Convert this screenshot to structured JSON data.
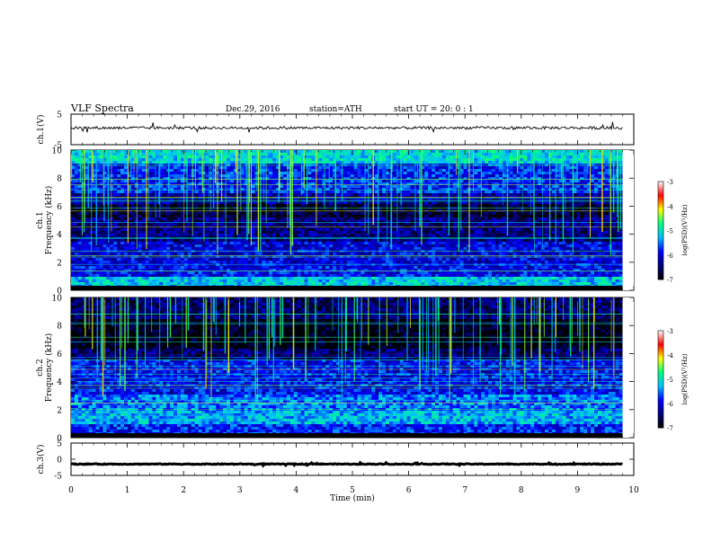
{
  "header": {
    "title": "VLF  Spectra",
    "date": "Dec.29, 2016",
    "station": "station=ATH",
    "start": "start  UT  =    20: 0   : 1"
  },
  "colors": {
    "background": "#ffffff",
    "axis": "#000000",
    "colormap": [
      "#000000",
      "#00007a",
      "#0000ff",
      "#00c0ff",
      "#00ff80",
      "#ffff00",
      "#ff0000",
      "#ffffff"
    ]
  },
  "chart_data": [
    {
      "type": "line",
      "panel": "ch1-waveform",
      "ylabel": "ch.1(V)",
      "ylim": [
        -5,
        5
      ],
      "yticks": [
        "5",
        "-5"
      ],
      "xlim": [
        0,
        10
      ],
      "trace_level": 0.5
    },
    {
      "type": "heatmap",
      "panel": "ch1-spectrogram",
      "ylabel_channel": "ch.1",
      "ylabel": "Frequency  (kHz)",
      "ylim": [
        0,
        10
      ],
      "yticks": [
        "0",
        "2",
        "4",
        "6",
        "8",
        "10"
      ],
      "xlim": [
        0,
        10
      ],
      "data_end_min": 9.8,
      "colorbar": {
        "label": "log(PSD)(V²/Hz)",
        "range": [
          -7,
          -3
        ],
        "ticks": [
          "-3",
          "-4",
          "-5",
          "-6",
          "-7"
        ]
      },
      "band_profile": [
        {
          "f_from": 9.0,
          "f_to": 10.0,
          "level": -5.1
        },
        {
          "f_from": 7.0,
          "f_to": 9.0,
          "level": -5.8
        },
        {
          "f_from": 6.1,
          "f_to": 7.0,
          "level": -6.3
        },
        {
          "f_from": 5.2,
          "f_to": 6.1,
          "level": -6.7
        },
        {
          "f_from": 3.5,
          "f_to": 5.2,
          "level": -6.4
        },
        {
          "f_from": 2.0,
          "f_to": 3.5,
          "level": -6.0
        },
        {
          "f_from": 1.0,
          "f_to": 2.0,
          "level": -5.9
        },
        {
          "f_from": 0.2,
          "f_to": 1.0,
          "level": -5.2
        },
        {
          "f_from": 0.0,
          "f_to": 0.2,
          "level": -7.0
        }
      ]
    },
    {
      "type": "heatmap",
      "panel": "ch2-spectrogram",
      "ylabel_channel": "ch.2",
      "ylabel": "Frequency  (kHz)",
      "ylim": [
        0,
        10
      ],
      "yticks": [
        "0",
        "2",
        "4",
        "6",
        "8",
        "10"
      ],
      "xlim": [
        0,
        10
      ],
      "data_end_min": 9.8,
      "colorbar": {
        "label": "log(PSD)(V²/Hz)",
        "range": [
          -7,
          -3
        ],
        "ticks": [
          "-3",
          "-4",
          "-5",
          "-6",
          "-7"
        ]
      },
      "band_profile": [
        {
          "f_from": 8.5,
          "f_to": 10.0,
          "level": -6.5
        },
        {
          "f_from": 6.3,
          "f_to": 8.5,
          "level": -6.9
        },
        {
          "f_from": 5.5,
          "f_to": 6.3,
          "level": -6.5
        },
        {
          "f_from": 3.0,
          "f_to": 5.5,
          "level": -5.9
        },
        {
          "f_from": 2.0,
          "f_to": 3.0,
          "level": -5.5
        },
        {
          "f_from": 1.0,
          "f_to": 2.0,
          "level": -5.3
        },
        {
          "f_from": 0.2,
          "f_to": 1.0,
          "level": -5.8
        },
        {
          "f_from": 0.0,
          "f_to": 0.2,
          "level": -7.0
        }
      ]
    },
    {
      "type": "line",
      "panel": "ch3-waveform",
      "ylabel": "ch.3(V)",
      "ylim": [
        -5,
        5
      ],
      "yticks": [
        "5",
        "0",
        "-5"
      ],
      "xlim": [
        0,
        10
      ],
      "xlabel": "Time  (min)",
      "xticks": [
        "0",
        "1",
        "2",
        "3",
        "4",
        "5",
        "6",
        "7",
        "8",
        "9",
        "10"
      ],
      "trace_level": -1.5
    }
  ]
}
